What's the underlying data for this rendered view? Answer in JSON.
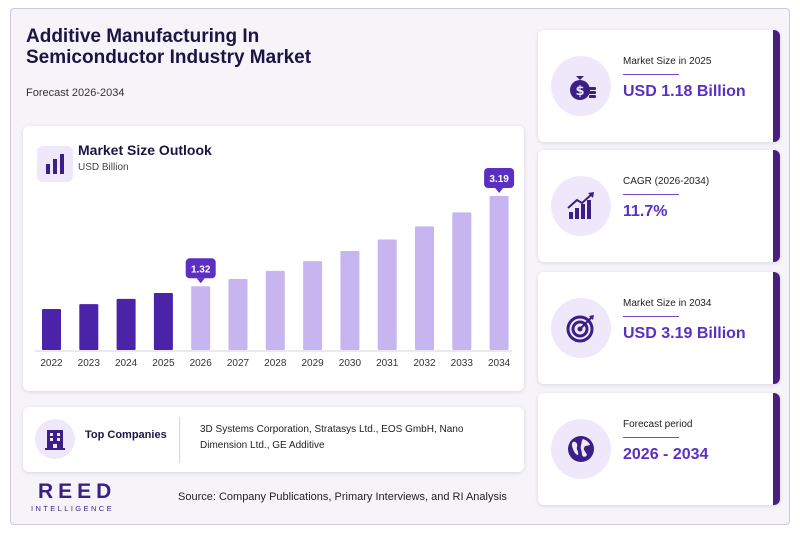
{
  "header": {
    "title_line1": "Additive Manufacturing In",
    "title_line2": "Semiconductor Industry Market",
    "subtitle": "Forecast 2026-2034"
  },
  "chart_card": {
    "icon": "bar-chart-icon",
    "title": "Market Size Outlook",
    "unit": "USD Billion"
  },
  "chart_data": {
    "type": "bar",
    "title": "Market Size Outlook",
    "ylabel": "USD Billion",
    "categories": [
      "2022",
      "2023",
      "2024",
      "2025",
      "2026",
      "2027",
      "2028",
      "2029",
      "2030",
      "2031",
      "2032",
      "2033",
      "2034"
    ],
    "values": [
      0.85,
      0.95,
      1.06,
      1.18,
      1.32,
      1.47,
      1.64,
      1.84,
      2.05,
      2.29,
      2.56,
      2.85,
      3.19
    ],
    "data_labels": [
      {
        "category": "2026",
        "label": "1.32"
      },
      {
        "category": "2034",
        "label": "3.19"
      }
    ],
    "ylim": [
      0,
      3.19
    ],
    "grid": false,
    "colors": {
      "historical": "#4a23a8",
      "forecast": "#c7b5f0",
      "callout": "#5b2fc2"
    }
  },
  "top_companies": {
    "icon": "building-icon",
    "label": "Top Companies",
    "text": "3D Systems Corporation, Stratasys Ltd., EOS GmbH, Nano Dimension Ltd., GE Additive"
  },
  "logo": {
    "main": "REED",
    "sub": "INTELLIGENCE"
  },
  "source": "Source: Company Publications, Primary Interviews, and RI Analysis",
  "stats": [
    {
      "icon": "money-bag-icon",
      "label": "Market Size in 2025",
      "value": "USD 1.18 Billion"
    },
    {
      "icon": "growth-chart-icon",
      "label": "CAGR (2026-2034)",
      "value": "11.7%"
    },
    {
      "icon": "target-icon",
      "label": "Market Size in 2034",
      "value": "USD 3.19 Billion"
    },
    {
      "icon": "globe-icon",
      "label": "Forecast period",
      "value": "2026 - 2034"
    }
  ],
  "colors": {
    "title": "#1b1545",
    "accent": "#5b2fc2",
    "accent_dark": "#4a1e7e",
    "icon_bg": "#efe8fb"
  }
}
